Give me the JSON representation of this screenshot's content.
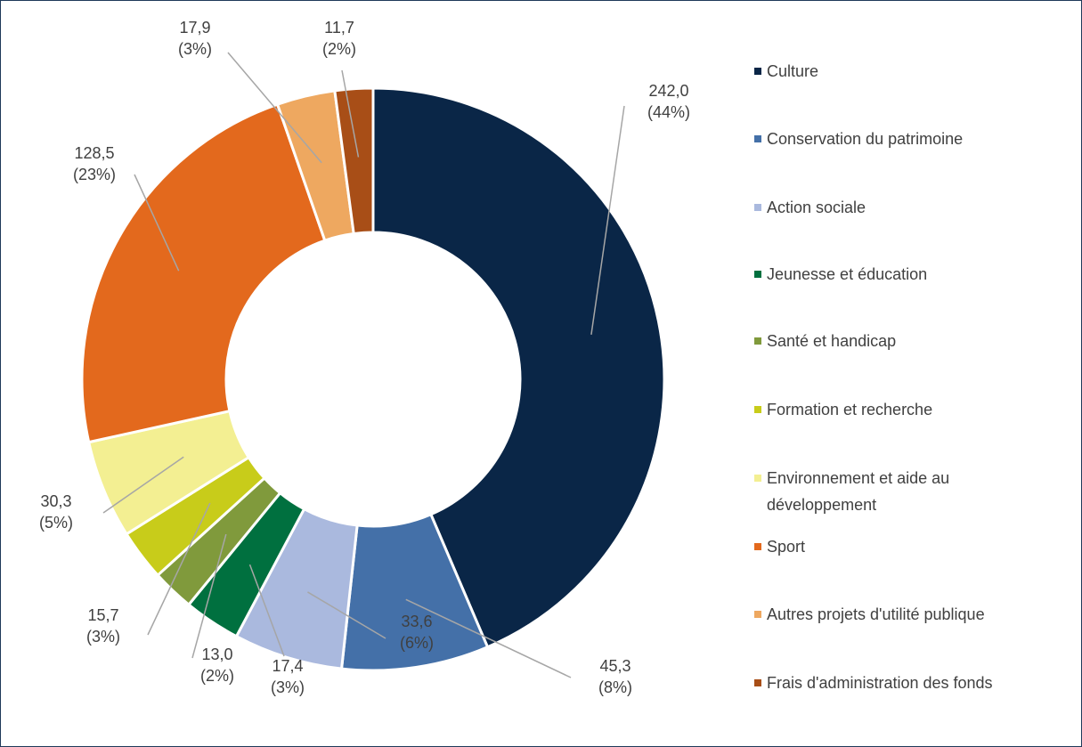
{
  "chart_data": {
    "type": "donut",
    "categories": [
      "Culture",
      "Conservation du patrimoine",
      "Action sociale",
      "Jeunesse et éducation",
      "Santé et handicap",
      "Formation et recherche",
      "Environnement et aide au développement",
      "Sport",
      "Autres projets d'utilité publique",
      "Frais d'administration des fonds"
    ],
    "values": [
      242.0,
      45.3,
      33.6,
      17.4,
      13.0,
      15.7,
      30.3,
      128.5,
      17.9,
      11.7
    ],
    "value_labels": [
      "242,0",
      "45,3",
      "33,6",
      "17,4",
      "13,0",
      "15,7",
      "30,3",
      "128,5",
      "17,9",
      "11,7"
    ],
    "percent_labels": [
      "(44%)",
      "(8%)",
      "(6%)",
      "(3%)",
      "(2%)",
      "(3%)",
      "(5%)",
      "(23%)",
      "(3%)",
      "(2%)"
    ],
    "colors": [
      "#0a2647",
      "#4470a8",
      "#aab9de",
      "#00703f",
      "#809a3c",
      "#c8cc1a",
      "#f3ef92",
      "#e3691d",
      "#eea860",
      "#a84e17"
    ],
    "legend": "right"
  }
}
